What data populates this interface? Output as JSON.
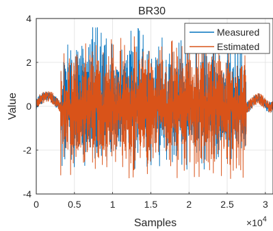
{
  "chart_data": {
    "type": "line",
    "title": "BR30",
    "xlabel": "Samples",
    "ylabel": "Value",
    "xlim": [
      0,
      31000
    ],
    "ylim": [
      -4,
      4
    ],
    "x_scale_exponent_label": "×10",
    "x_scale_exponent": "4",
    "x_ticks": [
      0,
      5000,
      10000,
      15000,
      20000,
      25000,
      30000
    ],
    "x_tick_labels": [
      "0",
      "0.5",
      "1",
      "1.5",
      "2",
      "2.5",
      "3"
    ],
    "y_ticks": [
      -4,
      -2,
      0,
      2,
      4
    ],
    "y_tick_labels": [
      "-4",
      "-2",
      "0",
      "2",
      "4"
    ],
    "grid": true,
    "legend_position": "top-right",
    "active_region": [
      3200,
      27500
    ],
    "series": [
      {
        "name": "Measured",
        "color": "#0072BD",
        "envelope": {
          "quiet_range": [
            -0.2,
            0.5
          ],
          "active_range": [
            -2.9,
            3.7
          ],
          "peak_max": 3.7,
          "peak_min": -2.9
        }
      },
      {
        "name": "Estimated",
        "color": "#D95319",
        "envelope": {
          "quiet_range": [
            -0.2,
            0.6
          ],
          "active_range": [
            -3.4,
            3.2
          ],
          "peak_max": 3.2,
          "peak_min": -3.4
        }
      }
    ]
  }
}
